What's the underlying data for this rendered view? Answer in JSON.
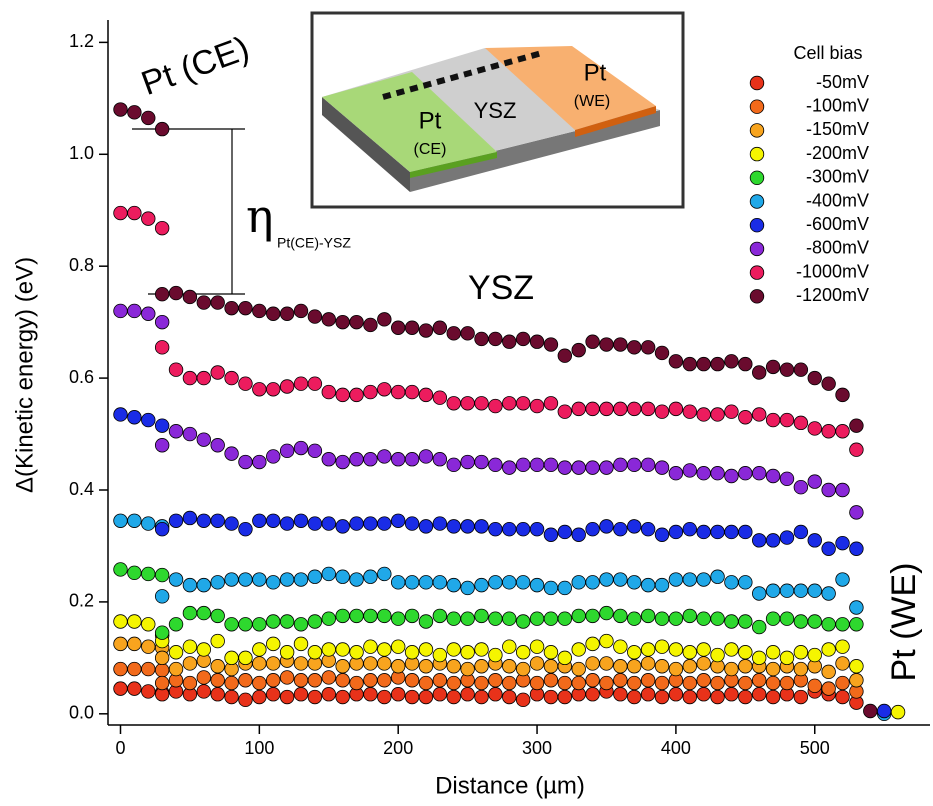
{
  "chart_data": {
    "type": "scatter",
    "x_label": "Distance (µm)",
    "y_label": "Δ(Kinetic energy) (eV)",
    "annotations": [
      "Pt (CE)",
      "YSZ",
      "Pt (WE)"
    ],
    "eta": {
      "symbol": "η",
      "subscript": "Pt(CE)-YSZ"
    },
    "inset_labels": [
      "Pt",
      "(CE)",
      "YSZ",
      "Pt",
      "(WE)"
    ],
    "legend_title": "Cell bias",
    "legend": "upper right",
    "xlim": [
      -9,
      583
    ],
    "ylim": [
      -0.02,
      1.24
    ],
    "xticks": [
      0,
      100,
      200,
      300,
      400,
      500
    ],
    "yticks": [
      {
        "value": 0,
        "label": "0.0"
      },
      0.2,
      0.4,
      0.6,
      0.8,
      {
        "value": 1,
        "label": "1.0"
      },
      1.2
    ],
    "x": [
      0,
      10,
      20,
      30,
      30,
      40,
      50,
      60,
      70,
      80,
      90,
      100,
      110,
      120,
      130,
      140,
      150,
      160,
      170,
      180,
      190,
      200,
      210,
      220,
      230,
      240,
      250,
      260,
      270,
      280,
      290,
      300,
      310,
      320,
      330,
      340,
      350,
      360,
      370,
      380,
      390,
      400,
      410,
      420,
      430,
      440,
      450,
      460,
      470,
      480,
      490,
      500,
      510,
      520,
      530,
      540,
      550,
      560
    ],
    "series": [
      {
        "name": "-50mV",
        "color": "#e8321a",
        "values": [
          0.045,
          0.045,
          0.04,
          0.038,
          0.035,
          0.04,
          0.035,
          0.04,
          0.035,
          0.03,
          0.025,
          0.03,
          0.035,
          0.03,
          0.035,
          0.03,
          0.035,
          0.03,
          0.035,
          0.035,
          0.03,
          0.035,
          0.03,
          0.03,
          0.035,
          0.03,
          0.035,
          0.03,
          0.035,
          0.03,
          0.025,
          0.035,
          0.03,
          0.03,
          0.035,
          0.035,
          0.04,
          0.035,
          0.03,
          0.035,
          0.03,
          0.035,
          0.03,
          0.035,
          0.03,
          0.035,
          0.03,
          0.035,
          0.03,
          0.035,
          0.03,
          0.04,
          0.035,
          0.03,
          0.02,
          null,
          null,
          null
        ]
      },
      {
        "name": "-100mV",
        "color": "#f26a1b",
        "values": [
          0.08,
          0.08,
          0.08,
          0.078,
          0.055,
          0.06,
          0.055,
          0.065,
          0.06,
          0.055,
          0.06,
          0.055,
          0.06,
          0.065,
          0.06,
          0.06,
          0.065,
          0.06,
          0.055,
          0.06,
          0.06,
          0.065,
          0.06,
          0.055,
          0.06,
          0.055,
          0.06,
          0.055,
          0.06,
          0.055,
          0.06,
          0.055,
          0.06,
          0.055,
          0.055,
          0.06,
          0.055,
          0.06,
          0.055,
          0.06,
          0.055,
          0.06,
          0.055,
          0.06,
          0.055,
          0.06,
          0.055,
          0.06,
          0.055,
          0.055,
          0.06,
          0.05,
          0.045,
          0.055,
          0.04,
          null,
          null,
          null
        ]
      },
      {
        "name": "-150mV",
        "color": "#f8a41e",
        "values": [
          0.125,
          0.125,
          0.12,
          0.118,
          0.1,
          0.08,
          0.09,
          0.095,
          0.085,
          0.08,
          0.09,
          0.09,
          0.09,
          0.095,
          0.09,
          0.09,
          0.095,
          0.085,
          0.09,
          0.09,
          0.09,
          0.085,
          0.09,
          0.085,
          0.09,
          0.085,
          0.08,
          0.085,
          0.09,
          0.085,
          0.08,
          0.09,
          0.085,
          0.085,
          0.08,
          0.09,
          0.09,
          0.085,
          0.085,
          0.09,
          0.085,
          0.08,
          0.085,
          0.09,
          0.085,
          0.08,
          0.085,
          0.085,
          0.08,
          0.085,
          0.08,
          0.085,
          0.075,
          0.09,
          0.06,
          null,
          null,
          null
        ]
      },
      {
        "name": "-200mV",
        "color": "#f5f500",
        "values": [
          0.165,
          0.165,
          0.16,
          0.14,
          0.13,
          0.11,
          0.12,
          0.115,
          0.13,
          0.1,
          0.1,
          0.115,
          0.125,
          0.11,
          0.125,
          0.11,
          0.115,
          0.115,
          0.11,
          0.12,
          0.115,
          0.12,
          0.11,
          0.115,
          0.105,
          0.115,
          0.11,
          0.115,
          0.105,
          0.12,
          0.11,
          0.12,
          0.11,
          0.1,
          0.115,
          0.125,
          0.13,
          0.12,
          0.11,
          0.115,
          0.12,
          0.115,
          0.11,
          0.115,
          0.105,
          0.115,
          0.11,
          0.1,
          0.11,
          0.1,
          0.11,
          0.105,
          0.115,
          0.12,
          0.085,
          null,
          null,
          0.003
        ]
      },
      {
        "name": "-300mV",
        "color": "#2ed82e",
        "values": [
          0.258,
          0.252,
          0.25,
          0.248,
          0.145,
          0.16,
          0.18,
          0.18,
          0.175,
          0.16,
          0.16,
          0.16,
          0.165,
          0.165,
          0.16,
          0.165,
          0.17,
          0.175,
          0.175,
          0.175,
          0.175,
          0.17,
          0.175,
          0.165,
          0.175,
          0.17,
          0.17,
          0.175,
          0.17,
          0.17,
          0.165,
          0.17,
          0.17,
          0.17,
          0.175,
          0.175,
          0.18,
          0.175,
          0.17,
          0.175,
          0.17,
          0.17,
          0.175,
          0.17,
          0.17,
          0.165,
          0.165,
          0.155,
          0.17,
          0.17,
          0.165,
          0.165,
          0.16,
          0.16,
          0.16,
          null,
          null,
          null
        ]
      },
      {
        "name": "-400mV",
        "color": "#20a8e8",
        "values": [
          0.345,
          0.345,
          0.34,
          0.335,
          0.21,
          0.24,
          0.23,
          0.23,
          0.235,
          0.24,
          0.24,
          0.24,
          0.235,
          0.24,
          0.24,
          0.245,
          0.25,
          0.245,
          0.24,
          0.245,
          0.25,
          0.235,
          0.235,
          0.235,
          0.235,
          0.23,
          0.225,
          0.23,
          0.235,
          0.235,
          0.235,
          0.23,
          0.225,
          0.225,
          0.235,
          0.235,
          0.24,
          0.24,
          0.235,
          0.23,
          0.23,
          0.24,
          0.24,
          0.24,
          0.245,
          0.235,
          0.235,
          0.215,
          0.22,
          0.22,
          0.22,
          0.22,
          0.215,
          0.24,
          0.19,
          null,
          0.0,
          null
        ]
      },
      {
        "name": "-600mV",
        "color": "#1a2ce6",
        "values": [
          0.535,
          0.53,
          0.525,
          0.515,
          0.33,
          0.345,
          0.35,
          0.345,
          0.345,
          0.34,
          0.33,
          0.345,
          0.345,
          0.34,
          0.345,
          0.34,
          0.34,
          0.335,
          0.34,
          0.34,
          0.34,
          0.345,
          0.34,
          0.335,
          0.34,
          0.335,
          0.335,
          0.335,
          0.33,
          0.33,
          0.33,
          0.33,
          0.32,
          0.325,
          0.32,
          0.33,
          0.335,
          0.33,
          0.335,
          0.33,
          0.32,
          0.325,
          0.33,
          0.325,
          0.325,
          0.325,
          0.325,
          0.31,
          0.31,
          0.315,
          0.325,
          0.31,
          0.295,
          0.305,
          0.295,
          null,
          0.005,
          null
        ]
      },
      {
        "name": "-800mV",
        "color": "#8a28d8",
        "values": [
          0.72,
          0.72,
          0.715,
          0.7,
          0.48,
          0.505,
          0.5,
          0.49,
          0.48,
          0.465,
          0.45,
          0.45,
          0.46,
          0.47,
          0.475,
          0.47,
          0.455,
          0.45,
          0.455,
          0.455,
          0.46,
          0.455,
          0.455,
          0.46,
          0.455,
          0.445,
          0.45,
          0.45,
          0.445,
          0.44,
          0.445,
          0.445,
          0.445,
          0.44,
          0.44,
          0.44,
          0.44,
          0.445,
          0.445,
          0.445,
          0.44,
          0.43,
          0.435,
          0.43,
          0.43,
          0.425,
          0.43,
          0.43,
          0.425,
          0.42,
          0.405,
          0.415,
          0.4,
          0.4,
          0.36,
          null,
          null,
          null
        ]
      },
      {
        "name": "-1000mV",
        "color": "#ec1c5e",
        "values": [
          0.895,
          0.895,
          0.885,
          0.868,
          0.655,
          0.615,
          0.6,
          0.6,
          0.61,
          0.6,
          0.59,
          0.58,
          0.58,
          0.585,
          0.59,
          0.59,
          0.575,
          0.57,
          0.57,
          0.575,
          0.58,
          0.575,
          0.575,
          0.57,
          0.565,
          0.555,
          0.555,
          0.555,
          0.55,
          0.555,
          0.555,
          0.55,
          0.555,
          0.54,
          0.545,
          0.545,
          0.545,
          0.545,
          0.545,
          0.545,
          0.54,
          0.545,
          0.54,
          0.535,
          0.535,
          0.54,
          0.53,
          0.535,
          0.525,
          0.525,
          0.52,
          0.51,
          0.505,
          0.505,
          0.472,
          null,
          null,
          null
        ]
      },
      {
        "name": "-1200mV",
        "color": "#6a0b2e",
        "values": [
          1.08,
          1.075,
          1.065,
          1.045,
          0.75,
          0.752,
          0.745,
          0.735,
          0.735,
          0.725,
          0.725,
          0.72,
          0.715,
          0.715,
          0.72,
          0.71,
          0.705,
          0.7,
          0.7,
          0.695,
          0.705,
          0.69,
          0.69,
          0.685,
          0.69,
          0.68,
          0.68,
          0.67,
          0.67,
          0.665,
          0.67,
          0.665,
          0.66,
          0.64,
          0.65,
          0.665,
          0.66,
          0.66,
          0.655,
          0.655,
          0.645,
          0.63,
          0.625,
          0.625,
          0.625,
          0.63,
          0.625,
          0.61,
          0.62,
          0.615,
          0.615,
          0.6,
          0.59,
          0.57,
          0.515,
          0.005,
          null,
          null
        ]
      }
    ]
  }
}
